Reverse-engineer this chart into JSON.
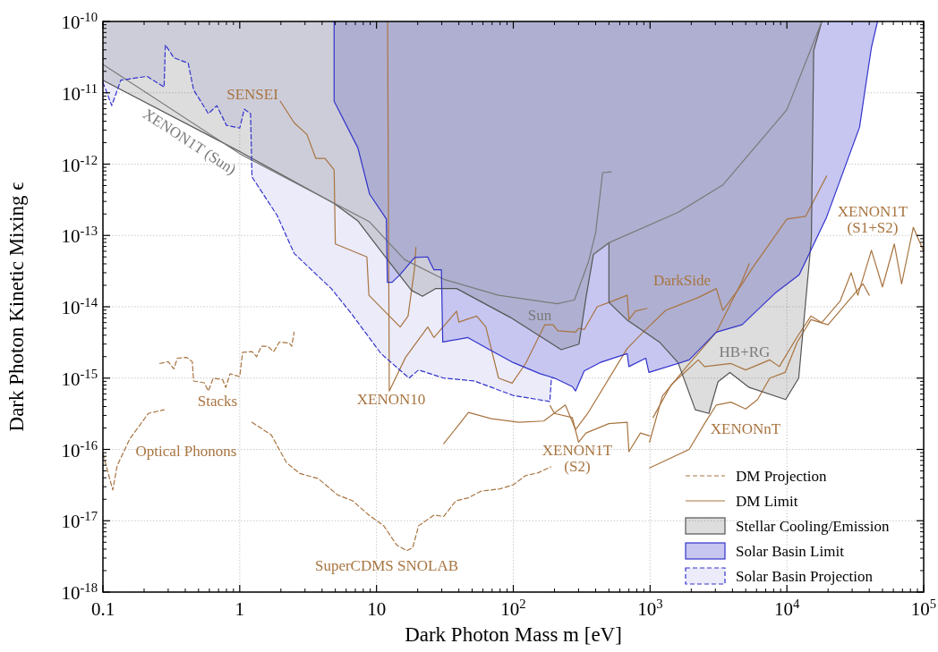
{
  "chart_data": {
    "type": "line",
    "xlabel": "Dark Photon Mass m [eV]",
    "ylabel": "Dark Photon Kinetic Mixing ϵ",
    "log": "xy",
    "grid": true,
    "legend": "bottom right",
    "xlim": [
      0.1,
      100000
    ],
    "ylim": [
      1e-18,
      1e-10
    ],
    "xticks": [
      0.1,
      1,
      10,
      {
        "value": 100,
        "label": "10$^{2}$"
      },
      {
        "value": 1000,
        "label": "10$^{3}$"
      },
      {
        "value": 10000,
        "label": "10$^{4}$"
      },
      {
        "value": 100000,
        "label": "10$^{5}$"
      }
    ],
    "yticks": [
      {
        "value": 1e-18,
        "label": "10$^{-18}$"
      },
      {
        "value": 1e-17,
        "label": "10$^{-17}$"
      },
      {
        "value": 1e-16,
        "label": "10$^{-16}$"
      },
      {
        "value": 1e-15,
        "label": "10$^{-15}$"
      },
      {
        "value": 1e-14,
        "label": "10$^{-14}$"
      },
      {
        "value": 1e-13,
        "label": "10$^{-13}$"
      },
      {
        "value": 1e-12,
        "label": "10$^{-12}$"
      },
      {
        "value": 1e-11,
        "label": "10$^{-11}$"
      },
      {
        "value": 1e-10,
        "label": "10$^{-10}$"
      }
    ],
    "series": [
      {
        "name": "DM Projection",
        "line_style": "dashed",
        "color": "#a87440",
        "x": [
          1.23,
          1.7,
          2.2,
          2.75,
          3.75,
          5.2,
          6.7,
          8.8,
          11.3,
          14,
          16.6,
          18.4,
          20.3,
          26.3,
          31,
          38,
          47,
          58,
          80,
          100,
          123,
          152,
          188
        ],
        "values": [
          2.4e-16,
          1.6e-16,
          6.5e-17,
          4.6e-17,
          3.9e-17,
          2.3e-17,
          1.9e-17,
          1.2e-17,
          8.5e-18,
          4.6e-18,
          3.8e-18,
          4.2e-18,
          8.5e-18,
          1.2e-17,
          1.15e-17,
          1.9e-17,
          2.1e-17,
          2.6e-17,
          2.8e-17,
          3.2e-17,
          4.3e-17,
          4.7e-17,
          5.7e-17
        ]
      },
      {
        "line_style": "dashed",
        "color": "#a87440",
        "x": [
          0.26,
          0.3,
          0.33,
          0.35,
          0.41,
          0.45,
          0.46,
          0.55,
          0.59,
          0.64,
          0.75,
          0.79,
          0.85,
          1.0,
          1.05,
          1.23,
          1.33,
          1.44,
          1.6,
          1.77,
          1.95,
          2.3,
          2.4,
          2.5
        ],
        "values": [
          1.6e-15,
          1.7e-15,
          1.35e-15,
          1.9e-15,
          1.95e-15,
          1.7e-15,
          9.1e-16,
          8.6e-16,
          6.6e-16,
          1e-15,
          9.5e-16,
          7.4e-16,
          1.15e-15,
          1.05e-15,
          2.3e-15,
          2.35e-15,
          2e-15,
          2.8e-15,
          2.8e-15,
          2.35e-15,
          3.2e-15,
          3.1e-15,
          2.8e-15,
          4.4e-15
        ]
      },
      {
        "line_style": "dashed",
        "color": "#a87440",
        "x": [
          0.1,
          0.118,
          0.127,
          0.157,
          0.215,
          0.28
        ],
        "values": [
          8.7e-17,
          2.7e-17,
          5.9e-17,
          1.4e-16,
          3.2e-16,
          3.6e-16
        ]
      },
      {
        "name": "DM Limit",
        "line_style": "solid",
        "color": "#a87440",
        "x": [
          1.98,
          2.5,
          3.1,
          3.6,
          4.2,
          4.9,
          5.0,
          8.5,
          8.8,
          14.9,
          17,
          19,
          19.4
        ],
        "values": [
          7.6e-12,
          3.8e-12,
          2.6e-12,
          1.2e-12,
          1.2e-12,
          8.3e-13,
          7.6e-14,
          5e-14,
          1.45e-14,
          5.2e-15,
          7.4e-15,
          3.5e-14,
          6.8e-14
        ]
      },
      {
        "line_style": "solid",
        "color": "#a87440",
        "x": [
          12.05,
          12.4,
          16.3,
          23.7,
          26.3,
          38.5,
          40,
          54,
          63,
          78,
          98,
          123,
          170,
          195,
          212,
          285,
          300,
          330,
          410,
          500,
          680,
          700,
          780,
          950
        ],
        "values": [
          1e-10,
          6.6e-16,
          1.95e-15,
          5.2e-15,
          3.7e-15,
          8.7e-15,
          6.1e-15,
          7.4e-15,
          5.2e-15,
          1e-15,
          8.5e-16,
          1.6e-15,
          5.6e-15,
          5.6e-15,
          4.6e-15,
          4.4e-15,
          5e-15,
          4.8e-15,
          1e-14,
          1.15e-14,
          1.45e-14,
          6.6e-15,
          8.7e-15,
          9.5e-15
        ]
      },
      {
        "line_style": "solid",
        "color": "#a87440",
        "x": [
          31,
          47,
          69,
          110,
          167,
          240,
          285,
          350,
          680,
          910,
          1300,
          2250,
          3050,
          3400,
          4600,
          5600,
          10000,
          13700,
          19500
        ],
        "values": [
          1.2e-16,
          3.3e-16,
          2.7e-16,
          2.4e-16,
          2.5e-16,
          4.2e-16,
          1.9e-16,
          3.2e-16,
          2.6e-15,
          4.6e-15,
          8.9e-15,
          1.35e-14,
          1.8e-14,
          8.9e-15,
          1.95e-14,
          3.5e-14,
          1.7e-13,
          1.85e-13,
          6.8e-13
        ]
      },
      {
        "line_style": "solid",
        "color": "#a87440",
        "x": [
          186,
          200,
          270,
          300,
          340,
          500,
          680,
          700,
          850,
          990
        ],
        "values": [
          4.1e-16,
          3.2e-16,
          2.8e-16,
          1.26e-16,
          1.7e-16,
          2.3e-16,
          2.4e-16,
          9.3e-17,
          1.7e-16,
          1.55e-16
        ]
      },
      {
        "line_style": "solid",
        "color": "#a87440",
        "x": [
          990,
          1230,
          1850,
          3050,
          4700,
          5300
        ],
        "values": [
          1.26e-16,
          5.6e-16,
          1.45e-15,
          4.4e-15,
          2.3e-14,
          4e-14
        ]
      },
      {
        "line_style": "solid",
        "color": "#a87440",
        "x": [
          1050,
          1430,
          2250,
          2500,
          3900,
          5000,
          7500,
          8800,
          11900,
          15000,
          18000,
          24500,
          29500,
          33000,
          41500,
          50000,
          61000,
          69000,
          84000,
          100000
        ],
        "values": [
          2.8e-16,
          8.1e-16,
          1.8e-15,
          1.45e-15,
          1.6e-15,
          1.3e-15,
          1.8e-15,
          1.45e-15,
          3.8e-15,
          7.4e-15,
          6e-15,
          1.2e-14,
          3e-14,
          1.45e-14,
          6.2e-14,
          1.9e-14,
          7.6e-14,
          2.1e-14,
          1.3e-13,
          6e-14
        ]
      },
      {
        "line_style": "solid",
        "color": "#a87440",
        "x": [
          990,
          1930,
          2500,
          3050,
          3900,
          5000,
          6100,
          7500,
          9700,
          11900,
          15000,
          20000,
          27000,
          36000,
          40000
        ],
        "values": [
          5.5e-17,
          1e-16,
          2.3e-16,
          4.2e-16,
          4.6e-16,
          3.7e-16,
          5e-16,
          1e-15,
          1.2e-15,
          3.2e-15,
          6.6e-15,
          5.6e-15,
          1.1e-14,
          2.1e-14,
          1.45e-14
        ]
      },
      {
        "name": "Stellar Cooling/Emission",
        "line_style": "solid",
        "color": "#555555",
        "x": [
          0.1,
          1,
          4.9,
          7.3,
          12,
          18,
          21.7,
          27,
          38.5,
          95,
          224,
          302,
          340,
          385,
          500,
          500,
          675,
          1170,
          1600,
          2140,
          2690,
          3140,
          3830,
          5300,
          9800,
          12200,
          15100,
          15700,
          18000
        ],
        "values": [
          1.5e-11,
          1.5e-12,
          2.8e-13,
          1.6e-13,
          4.6e-14,
          1.7e-14,
          1.4e-14,
          1.8e-14,
          1.8e-14,
          7.1e-15,
          2.5e-15,
          3e-15,
          1.35e-14,
          5.4e-14,
          7.9e-14,
          1.15e-14,
          6.6e-15,
          3.2e-15,
          1.65e-15,
          3.6e-16,
          3.2e-16,
          8.9e-16,
          1.2e-15,
          7.4e-16,
          5e-16,
          1e-15,
          8.9e-14,
          3.9e-11,
          1e-10
        ],
        "lower": [
          1.5e-11,
          1.5e-12,
          2.8e-13,
          1.6e-13,
          4.6e-14,
          1.7e-14,
          1.4e-14,
          1.8e-14,
          1.8e-14,
          7.1e-15,
          2.5e-15,
          3e-15,
          1.35e-14,
          5.4e-14,
          7.9e-14,
          1.15e-14,
          6.6e-15,
          3.2e-15,
          1.65e-15,
          3.6e-16,
          3.2e-16,
          8.9e-16,
          1.2e-15,
          7.4e-16,
          5e-16,
          1e-15,
          8.9e-14,
          3.9e-11,
          1e-10
        ],
        "upper": [
          1e-10,
          1e-10,
          1e-10,
          1e-10,
          1e-10,
          1e-10,
          1e-10,
          1e-10,
          1e-10,
          1e-10,
          1e-10,
          1e-10,
          1e-10,
          1e-10,
          1e-10,
          1e-10,
          1e-10,
          1e-10,
          1e-10,
          1e-10,
          1e-10,
          1e-10,
          1e-10,
          1e-10,
          1e-10,
          1e-10,
          1e-10,
          1e-10,
          1e-10
        ]
      },
      {
        "line_style": "solid",
        "color": "#7a7a7a",
        "x": [
          0.1,
          1,
          8.9,
          12,
          16,
          31.5,
          78,
          210,
          280,
          355,
          400,
          450,
          520
        ],
        "values": [
          2.5e-11,
          1.4e-12,
          1.55e-13,
          8.3e-14,
          4.6e-14,
          2.4e-14,
          1.45e-14,
          1.1e-14,
          1.25e-14,
          4.3e-14,
          1.1e-13,
          7.6e-13,
          7.8e-13
        ]
      },
      {
        "line_style": "solid",
        "color": "#7a7a7a",
        "x": [
          385,
          500,
          1600,
          3400,
          10000,
          18000
        ],
        "values": [
          5.4e-14,
          7.9e-14,
          2.1e-13,
          5.1e-13,
          5.8e-12,
          1e-10
        ]
      },
      {
        "name": "Solar Basin Limit",
        "line_style": "solid",
        "color": "#3333cc",
        "x": [
          4.9,
          4.9,
          7.3,
          8.9,
          11.8,
          12,
          13,
          14.8,
          19,
          23.7,
          24.5,
          26.3,
          29.8,
          30.5,
          46.6,
          67,
          100,
          157,
          200,
          270,
          285,
          330,
          430,
          680,
          700,
          930,
          980,
          1930,
          3050,
          4700,
          8200,
          12300,
          19500,
          34000,
          37000,
          41500,
          46000
        ],
        "values": [
          1e-10,
          7.6e-12,
          1.7e-12,
          3.8e-13,
          1.7e-13,
          2.2e-14,
          2.2e-14,
          2.8e-14,
          4.9e-14,
          5e-14,
          4.3e-14,
          3.3e-14,
          3.3e-14,
          3.2e-15,
          3.7e-15,
          2.5e-15,
          1.65e-15,
          1.15e-15,
          1e-15,
          7.6e-16,
          6.6e-16,
          1.26e-15,
          1.65e-15,
          2.2e-15,
          1.45e-15,
          1.9e-15,
          1.2e-15,
          1.8e-15,
          4.4e-15,
          5.6e-15,
          1.55e-14,
          2.8e-14,
          1.8e-13,
          3.3e-12,
          1e-11,
          4.3e-11,
          1e-10
        ],
        "lower": [
          1e-10,
          7.6e-12,
          1.7e-12,
          3.8e-13,
          1.7e-13,
          2.2e-14,
          2.2e-14,
          2.8e-14,
          4.9e-14,
          5e-14,
          4.3e-14,
          3.3e-14,
          3.3e-14,
          3.2e-15,
          3.7e-15,
          2.5e-15,
          1.65e-15,
          1.15e-15,
          1e-15,
          7.6e-16,
          6.6e-16,
          1.26e-15,
          1.65e-15,
          2.2e-15,
          1.45e-15,
          1.9e-15,
          1.2e-15,
          1.8e-15,
          4.4e-15,
          5.6e-15,
          1.55e-14,
          2.8e-14,
          1.8e-13,
          3.3e-12,
          1e-11,
          4.3e-11,
          1e-10
        ],
        "upper": [
          1e-10,
          1e-10,
          1e-10,
          1e-10,
          1e-10,
          1e-10,
          1e-10,
          1e-10,
          1e-10,
          1e-10,
          1e-10,
          1e-10,
          1e-10,
          1e-10,
          1e-10,
          1e-10,
          1e-10,
          1e-10,
          1e-10,
          1e-10,
          1e-10,
          1e-10,
          1e-10,
          1e-10,
          1e-10,
          1e-10,
          1e-10,
          1e-10,
          1e-10,
          1e-10,
          1e-10,
          1e-10,
          1e-10,
          1e-10,
          1e-10,
          1e-10,
          1e-10
        ]
      },
      {
        "name": "Solar Basin Projection",
        "line_style": "dashed",
        "color": "#3333cc",
        "x": [
          0.1,
          0.116,
          0.135,
          0.21,
          0.28,
          0.286,
          0.33,
          0.42,
          0.46,
          0.59,
          0.68,
          0.8,
          1.0,
          1.08,
          1.2,
          1.23,
          1.88,
          2.5,
          3.4,
          4.67,
          6.4,
          10.8,
          17.3,
          20.3,
          31,
          52,
          100,
          185,
          190,
          200
        ],
        "values": [
          1.4e-11,
          6.6e-12,
          1.5e-11,
          1.7e-11,
          1.2e-11,
          4.7e-11,
          3.1e-11,
          2.6e-11,
          1.1e-11,
          5.1e-12,
          6.6e-12,
          3.5e-12,
          3.2e-12,
          5.9e-12,
          5.1e-12,
          6.6e-13,
          1.9e-13,
          5.6e-14,
          3.2e-14,
          1.8e-14,
          8.5e-15,
          2.2e-15,
          1e-15,
          1.3e-15,
          1e-15,
          9.1e-16,
          5.7e-16,
          4.7e-16,
          1e-15,
          1e-15
        ],
        "lower": [
          1.4e-11,
          6.6e-12,
          1.5e-11,
          1.7e-11,
          1.2e-11,
          4.7e-11,
          3.1e-11,
          2.6e-11,
          1.1e-11,
          5.1e-12,
          6.6e-12,
          3.5e-12,
          3.2e-12,
          5.9e-12,
          5.1e-12,
          6.6e-13,
          1.9e-13,
          5.6e-14,
          3.2e-14,
          1.8e-14,
          8.5e-15,
          2.2e-15,
          1e-15,
          1.3e-15,
          1e-15,
          9.1e-16,
          5.7e-16,
          4.7e-16,
          1e-15,
          1e-15
        ],
        "upper": [
          1e-10,
          1e-10,
          1e-10,
          1e-10,
          1e-10,
          1e-10,
          1e-10,
          1e-10,
          1e-10,
          1e-10,
          1e-10,
          1e-10,
          1e-10,
          1e-10,
          1e-10,
          1e-10,
          1e-10,
          1e-10,
          1e-10,
          1e-10,
          1e-10,
          1e-10,
          1e-10,
          1e-10,
          1e-10,
          1e-10,
          1e-10,
          1e-10,
          1e-10,
          1e-10
        ]
      }
    ],
    "annotations": [
      "SENSEI",
      "XENON1T (Sun)",
      "Sun",
      "DarkSide",
      "HB+RG",
      "XENON1T\n(S1+S2)",
      "XENON10",
      "Stacks",
      "Optical Phonons",
      "XENON1T\n(S2)",
      "XENONnT",
      "SuperCDMS SNOLAB"
    ]
  }
}
